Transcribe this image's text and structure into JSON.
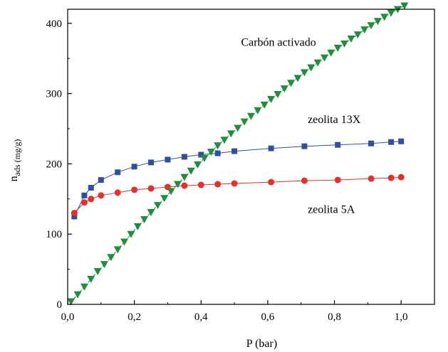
{
  "chart_data": {
    "type": "line",
    "title": "",
    "xlabel": "P (bar)",
    "ylabel": {
      "main": "n",
      "sub": "ads",
      "unit": "(mg/g)"
    },
    "xlim": [
      0.0,
      1.1
    ],
    "ylim": [
      0,
      420
    ],
    "x_ticks": [
      0.0,
      0.2,
      0.4,
      0.6,
      0.8,
      1.0
    ],
    "x_tick_labels": [
      "0,0",
      "0,2",
      "0,4",
      "0,6",
      "0,8",
      "1,0"
    ],
    "y_ticks": [
      0,
      100,
      200,
      300,
      400
    ],
    "y_tick_labels": [
      "0",
      "100",
      "200",
      "300",
      "400"
    ],
    "grid": false,
    "legend": "none",
    "series": [
      {
        "name": "zeolita 13X",
        "marker": "square",
        "color": "#2f4fa0",
        "x": [
          0.02,
          0.05,
          0.07,
          0.1,
          0.15,
          0.2,
          0.25,
          0.3,
          0.35,
          0.4,
          0.45,
          0.5,
          0.61,
          0.71,
          0.81,
          0.91,
          0.97,
          1.0
        ],
        "y": [
          125,
          155,
          166,
          177,
          188,
          196,
          202,
          206,
          210,
          213,
          215,
          218,
          222,
          225,
          227,
          229,
          231,
          232
        ]
      },
      {
        "name": "zeolita 5A",
        "marker": "circle",
        "color": "#e8302a",
        "x": [
          0.02,
          0.05,
          0.07,
          0.1,
          0.15,
          0.2,
          0.25,
          0.3,
          0.35,
          0.4,
          0.45,
          0.5,
          0.61,
          0.71,
          0.81,
          0.91,
          0.97,
          1.0
        ],
        "y": [
          130,
          145,
          150,
          155,
          159,
          163,
          165,
          167,
          169,
          170,
          171,
          172,
          174,
          176,
          177,
          179,
          180,
          181
        ]
      },
      {
        "name": "Carbón activado",
        "marker": "triangle-down",
        "color": "#1f8f3a",
        "x": [
          0.01,
          0.03,
          0.05,
          0.07,
          0.09,
          0.11,
          0.13,
          0.15,
          0.17,
          0.19,
          0.21,
          0.23,
          0.25,
          0.27,
          0.29,
          0.31,
          0.33,
          0.35,
          0.37,
          0.39,
          0.41,
          0.43,
          0.45,
          0.47,
          0.49,
          0.51,
          0.53,
          0.55,
          0.57,
          0.59,
          0.61,
          0.63,
          0.65,
          0.67,
          0.69,
          0.71,
          0.73,
          0.75,
          0.77,
          0.79,
          0.81,
          0.83,
          0.85,
          0.87,
          0.89,
          0.91,
          0.93,
          0.95,
          0.97,
          0.99,
          1.01
        ],
        "y": [
          4,
          14,
          25,
          36,
          47,
          57,
          67,
          78,
          89,
          100,
          111,
          121,
          131,
          141,
          151,
          161,
          171,
          181,
          190,
          199,
          208,
          217,
          226,
          234,
          243,
          251,
          260,
          268,
          276,
          284,
          292,
          299,
          307,
          315,
          322,
          330,
          337,
          344,
          351,
          358,
          365,
          371,
          378,
          384,
          391,
          397,
          403,
          409,
          415,
          420,
          425
        ]
      }
    ],
    "annotations": [
      {
        "text": "Carbón activado",
        "x": 0.52,
        "y": 368
      },
      {
        "text": "zeolita 13X",
        "x": 0.72,
        "y": 258
      },
      {
        "text": "zeolita 5A",
        "x": 0.72,
        "y": 130
      }
    ]
  }
}
